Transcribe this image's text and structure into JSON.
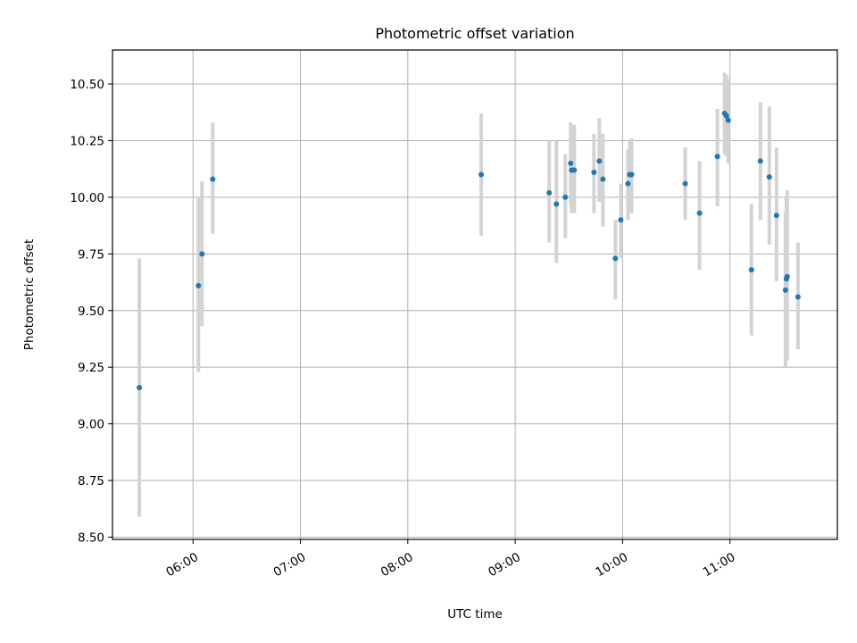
{
  "chart_data": {
    "type": "scatter",
    "title": "Photometric offset variation",
    "xlabel": "UTC time",
    "ylabel": "Photometric offset",
    "xlim": [
      "05:15",
      "12:00"
    ],
    "ylim": [
      8.49,
      10.65
    ],
    "grid": true,
    "marker_color": "#1f77b4",
    "errorbar_color": "#d3d3d3",
    "x_ticks": [
      "06:00",
      "07:00",
      "08:00",
      "09:00",
      "10:00",
      "11:00"
    ],
    "y_ticks": [
      "8.50",
      "8.75",
      "9.00",
      "9.25",
      "9.50",
      "9.75",
      "10.00",
      "10.25",
      "10.50"
    ],
    "points": [
      {
        "x": "05:30",
        "y": 9.16,
        "ylow": 8.59,
        "yhigh": 9.73
      },
      {
        "x": "06:03",
        "y": 9.61,
        "ylow": 9.23,
        "yhigh": 10.0
      },
      {
        "x": "06:05",
        "y": 9.75,
        "ylow": 9.43,
        "yhigh": 10.07
      },
      {
        "x": "06:11",
        "y": 10.08,
        "ylow": 9.84,
        "yhigh": 10.33
      },
      {
        "x": "08:41",
        "y": 10.1,
        "ylow": 9.83,
        "yhigh": 10.37
      },
      {
        "x": "09:19",
        "y": 10.02,
        "ylow": 9.8,
        "yhigh": 10.25
      },
      {
        "x": "09:23",
        "y": 9.97,
        "ylow": 9.71,
        "yhigh": 10.25
      },
      {
        "x": "09:28",
        "y": 10.0,
        "ylow": 9.82,
        "yhigh": 10.19
      },
      {
        "x": "09:31",
        "y": 10.15,
        "ylow": 9.97,
        "yhigh": 10.33
      },
      {
        "x": "09:31.5",
        "y": 10.12,
        "ylow": 9.93,
        "yhigh": 10.3
      },
      {
        "x": "09:33",
        "y": 10.12,
        "ylow": 9.93,
        "yhigh": 10.32
      },
      {
        "x": "09:44",
        "y": 10.11,
        "ylow": 9.93,
        "yhigh": 10.28
      },
      {
        "x": "09:47",
        "y": 10.16,
        "ylow": 9.98,
        "yhigh": 10.35
      },
      {
        "x": "09:49",
        "y": 10.08,
        "ylow": 9.87,
        "yhigh": 10.28
      },
      {
        "x": "09:56",
        "y": 9.73,
        "ylow": 9.55,
        "yhigh": 9.9
      },
      {
        "x": "09:59",
        "y": 9.9,
        "ylow": 9.73,
        "yhigh": 10.06
      },
      {
        "x": "10:03",
        "y": 10.06,
        "ylow": 9.9,
        "yhigh": 10.21
      },
      {
        "x": "10:04",
        "y": 10.1,
        "ylow": 9.95,
        "yhigh": 10.25
      },
      {
        "x": "10:05",
        "y": 10.1,
        "ylow": 9.93,
        "yhigh": 10.26
      },
      {
        "x": "10:35",
        "y": 10.06,
        "ylow": 9.9,
        "yhigh": 10.22
      },
      {
        "x": "10:43",
        "y": 9.93,
        "ylow": 9.68,
        "yhigh": 10.16
      },
      {
        "x": "10:53",
        "y": 10.18,
        "ylow": 9.96,
        "yhigh": 10.39
      },
      {
        "x": "10:57",
        "y": 10.37,
        "ylow": 10.19,
        "yhigh": 10.55
      },
      {
        "x": "10:58",
        "y": 10.36,
        "ylow": 10.18,
        "yhigh": 10.54
      },
      {
        "x": "10:59",
        "y": 10.34,
        "ylow": 10.15,
        "yhigh": 10.52
      },
      {
        "x": "11:12",
        "y": 9.68,
        "ylow": 9.39,
        "yhigh": 9.97
      },
      {
        "x": "11:17",
        "y": 10.16,
        "ylow": 9.9,
        "yhigh": 10.42
      },
      {
        "x": "11:22",
        "y": 10.09,
        "ylow": 9.79,
        "yhigh": 10.4
      },
      {
        "x": "11:26",
        "y": 9.92,
        "ylow": 9.63,
        "yhigh": 10.22
      },
      {
        "x": "11:31",
        "y": 9.59,
        "ylow": 9.25,
        "yhigh": 9.93
      },
      {
        "x": "11:31.5",
        "y": 9.64,
        "ylow": 9.28,
        "yhigh": 10.0
      },
      {
        "x": "11:32",
        "y": 9.65,
        "ylow": 9.28,
        "yhigh": 10.03
      },
      {
        "x": "11:38",
        "y": 9.56,
        "ylow": 9.33,
        "yhigh": 9.8
      }
    ]
  }
}
